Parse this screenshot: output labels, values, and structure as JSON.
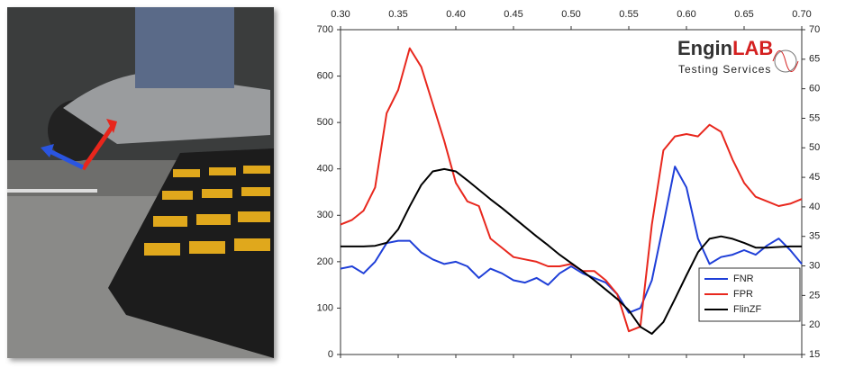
{
  "chart_data": {
    "type": "line",
    "annotations": [
      "Engin",
      "LAB",
      "Testing Services"
    ],
    "x": [
      0.3,
      0.31,
      0.32,
      0.33,
      0.34,
      0.35,
      0.36,
      0.37,
      0.38,
      0.39,
      0.4,
      0.41,
      0.42,
      0.43,
      0.44,
      0.45,
      0.46,
      0.47,
      0.48,
      0.49,
      0.5,
      0.51,
      0.52,
      0.53,
      0.54,
      0.55,
      0.56,
      0.57,
      0.58,
      0.59,
      0.6,
      0.61,
      0.62,
      0.63,
      0.64,
      0.65,
      0.66,
      0.67,
      0.68,
      0.69,
      0.7
    ],
    "xlim": [
      0.3,
      0.7
    ],
    "xticks": [
      {
        "value": 0.3,
        "label": "0.30"
      },
      {
        "value": 0.35,
        "label": "0.35"
      },
      {
        "value": 0.4,
        "label": "0.40"
      },
      {
        "value": 0.45,
        "label": "0.45"
      },
      {
        "value": 0.5,
        "label": "0.50"
      },
      {
        "value": 0.55,
        "label": "0.55"
      },
      {
        "value": 0.6,
        "label": "0.60"
      },
      {
        "value": 0.65,
        "label": "0.65"
      },
      {
        "value": 0.7,
        "label": "0.70"
      }
    ],
    "ylim": [
      0,
      700
    ],
    "yticks": [
      0,
      100,
      200,
      300,
      400,
      500,
      600,
      700
    ],
    "y2lim": [
      15,
      70
    ],
    "y2ticks": [
      15,
      20,
      25,
      30,
      35,
      40,
      45,
      50,
      55,
      60,
      65,
      70
    ],
    "legend": "lower right",
    "series": [
      {
        "name": "FNR",
        "color": "#1f3fd8",
        "values": [
          185,
          190,
          175,
          200,
          240,
          245,
          245,
          220,
          205,
          195,
          200,
          190,
          165,
          185,
          175,
          160,
          155,
          165,
          150,
          175,
          190,
          175,
          165,
          155,
          130,
          90,
          100,
          160,
          280,
          405,
          360,
          250,
          195,
          210,
          215,
          225,
          215,
          235,
          250,
          225,
          195
        ]
      },
      {
        "name": "FPR",
        "color": "#e8281e",
        "values": [
          280,
          290,
          310,
          360,
          520,
          570,
          660,
          620,
          540,
          460,
          370,
          330,
          320,
          250,
          230,
          210,
          205,
          200,
          190,
          190,
          195,
          180,
          180,
          160,
          130,
          50,
          60,
          280,
          440,
          470,
          475,
          470,
          495,
          480,
          420,
          370,
          340,
          330,
          320,
          325,
          335
        ]
      },
      {
        "name": "FlinZF",
        "color": "#000000",
        "axis": "y2",
        "values": [
          33.3,
          33.3,
          33.3,
          33.4,
          33.9,
          36.2,
          40.1,
          43.7,
          46.0,
          46.4,
          46.0,
          44.5,
          42.9,
          41.3,
          39.8,
          38.2,
          36.6,
          35.0,
          33.5,
          31.9,
          30.5,
          29.1,
          27.6,
          26.0,
          24.4,
          22.5,
          19.7,
          18.5,
          20.5,
          24.4,
          28.4,
          32.3,
          34.6,
          35.0,
          34.6,
          33.9,
          33.1,
          33.1,
          33.2,
          33.3,
          33.3
        ]
      }
    ]
  }
}
